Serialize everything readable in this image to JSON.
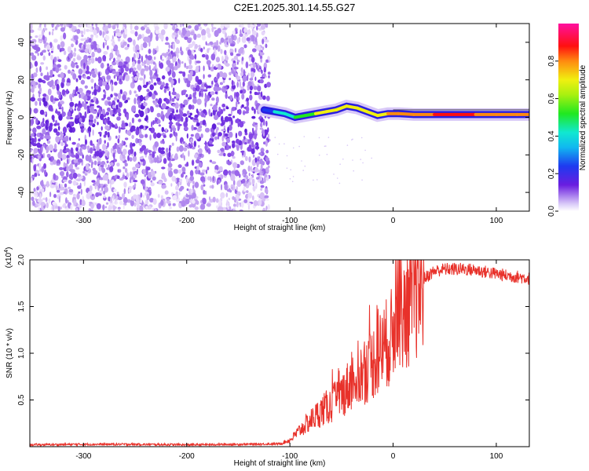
{
  "title": "C2E1.2025.301.14.55.G27",
  "top_chart": {
    "xlabel": "Height of straight line (km)",
    "ylabel": "Frequency (Hz)",
    "colorbar_label": "Normalized spectral amplitude"
  },
  "bottom_chart": {
    "xlabel": "Height of straight line (km)",
    "ylabel": "SNR (10 * v/v)",
    "multiplier_label": "(x10",
    "multiplier_exp": "4",
    "multiplier_close": ")"
  },
  "colors": {
    "snr_line": "#e8312a",
    "top_signal": "#2a1ee0",
    "noise": "#8a2be2"
  },
  "chart_data": [
    {
      "type": "heatmap",
      "title": "C2E1.2025.301.14.55.G27",
      "xlabel": "Height of straight line (km)",
      "ylabel": "Frequency (Hz)",
      "colorbar_label": "Normalized spectral amplitude",
      "xlim": [
        -352,
        132
      ],
      "ylim": [
        -50,
        50
      ],
      "x_ticks": [
        -300,
        -200,
        -100,
        0,
        100
      ],
      "y_ticks": [
        -40,
        -20,
        0,
        20,
        40
      ],
      "colorbar_ticks": [
        0.0,
        0.2,
        0.4,
        0.6,
        0.8
      ],
      "colorbar_range": [
        0,
        1
      ],
      "noise_region_x": [
        -352,
        -120
      ],
      "ridge": {
        "x": [
          -125,
          -115,
          -105,
          -95,
          -85,
          -75,
          -65,
          -55,
          -45,
          -35,
          -25,
          -15,
          -5,
          5,
          20,
          40,
          60,
          80,
          100,
          120,
          132
        ],
        "freq": [
          4,
          3,
          2,
          0,
          1,
          2,
          3,
          4,
          6,
          5,
          3,
          1,
          2,
          2,
          1.5,
          1.5,
          1.5,
          1.5,
          1.5,
          1.5,
          1.5
        ],
        "amp": [
          0.3,
          0.35,
          0.45,
          0.6,
          0.65,
          0.7,
          0.7,
          0.75,
          0.8,
          0.75,
          0.7,
          0.8,
          0.85,
          0.9,
          0.95,
          1.0,
          1.0,
          1.0,
          0.95,
          0.95,
          0.9
        ]
      }
    },
    {
      "type": "line",
      "xlabel": "Height of straight line (km)",
      "ylabel": "SNR (10 * v/v)",
      "xlim": [
        -352,
        132
      ],
      "ylim": [
        0,
        20000
      ],
      "x_ticks": [
        -300,
        -200,
        -100,
        0,
        100
      ],
      "y_ticks": [
        0.5,
        1.0,
        1.5,
        2.0
      ],
      "y_scale_factor": 10000,
      "series": [
        {
          "x": [
            -352,
            -300,
            -250,
            -200,
            -150,
            -110,
            -100,
            -90,
            -80,
            -70,
            -60,
            -50,
            -40,
            -30,
            -20,
            -10,
            0,
            5,
            10,
            20,
            30,
            40,
            50,
            60,
            70,
            80,
            90,
            100,
            110,
            120,
            132
          ],
          "y": [
            200,
            250,
            250,
            200,
            250,
            300,
            700,
            1800,
            2800,
            3800,
            4500,
            5500,
            7000,
            7800,
            9000,
            10500,
            12000,
            15500,
            14500,
            16000,
            18000,
            18800,
            19000,
            19000,
            19000,
            18900,
            18700,
            18500,
            18300,
            18200,
            18000
          ]
        }
      ]
    }
  ]
}
